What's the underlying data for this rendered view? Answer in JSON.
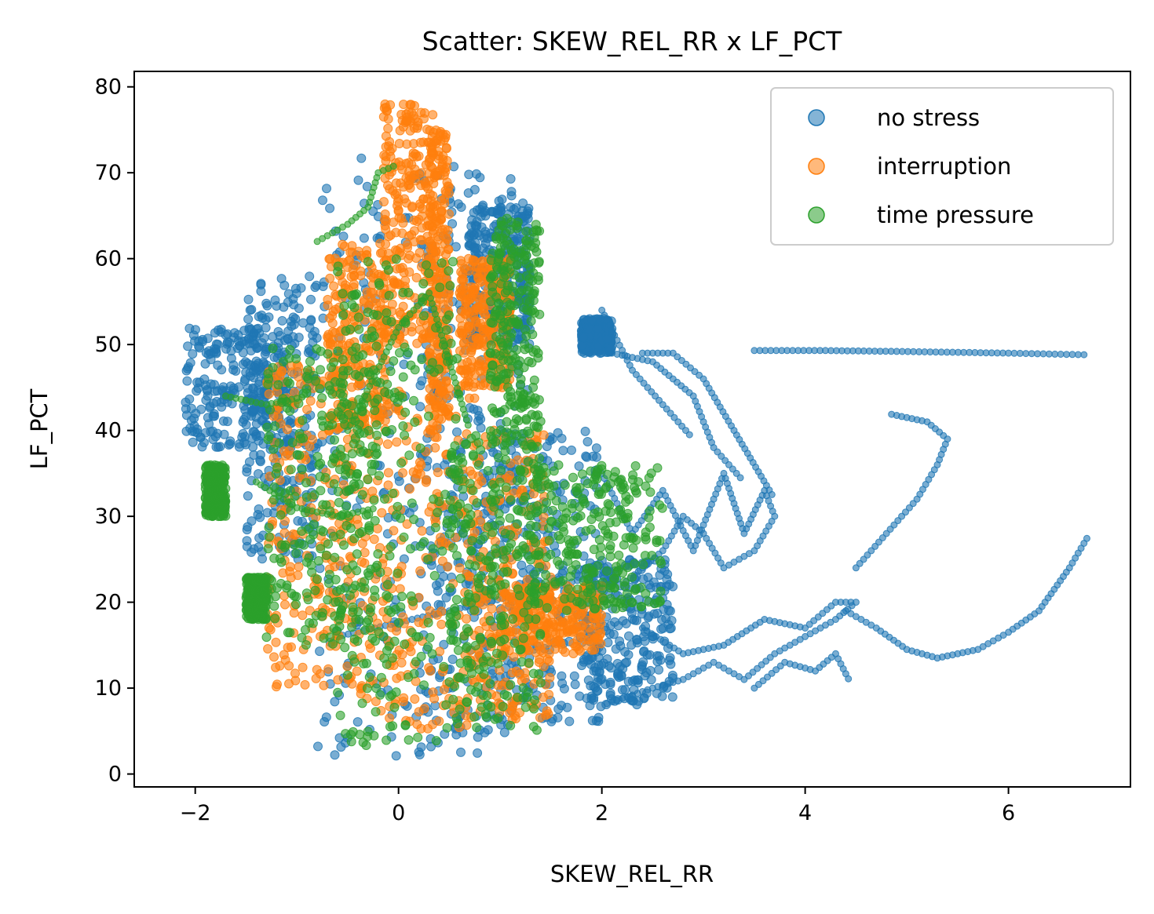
{
  "chart_data": {
    "type": "scatter",
    "title": "Scatter: SKEW_REL_RR x LF_PCT",
    "xlabel": "SKEW_REL_RR",
    "ylabel": "LF_PCT",
    "xlim": [
      -2.6,
      7.2
    ],
    "ylim": [
      -1.5,
      81.8
    ],
    "xticks": [
      -2,
      0,
      2,
      4,
      6
    ],
    "yticks": [
      0,
      10,
      20,
      30,
      40,
      50,
      60,
      70,
      80
    ],
    "grid": false,
    "legend_position": "top-right",
    "series": [
      {
        "name": "no stress",
        "color": "#1f77b4",
        "clusters": [
          {
            "x": [
              -2.1,
              -1.1
            ],
            "y": [
              38,
              52
            ]
          },
          {
            "x": [
              -1.5,
              -0.8
            ],
            "y": [
              25,
              58
            ]
          },
          {
            "x": [
              -0.8,
              0.8
            ],
            "y": [
              2,
              72
            ]
          },
          {
            "x": [
              0.2,
              1.3
            ],
            "y": [
              4,
              70
            ]
          },
          {
            "x": [
              0.7,
              1.3
            ],
            "y": [
              50,
              66
            ]
          },
          {
            "x": [
              0.8,
              2.0
            ],
            "y": [
              6,
              40
            ]
          },
          {
            "x": [
              1.8,
              2.7
            ],
            "y": [
              8,
              25
            ]
          },
          {
            "x": [
              1.8,
              2.1
            ],
            "y": [
              49,
              53
            ]
          }
        ],
        "paths": [
          [
            [
              2.0,
              35
            ],
            [
              2.3,
              28
            ],
            [
              2.6,
              33
            ],
            [
              2.9,
              26
            ],
            [
              3.2,
              35
            ],
            [
              3.4,
              28
            ],
            [
              3.6,
              33
            ],
            [
              3.7,
              30
            ],
            [
              3.5,
              26
            ],
            [
              3.2,
              24
            ],
            [
              3.0,
              28
            ],
            [
              2.8,
              30
            ],
            [
              2.6,
              26
            ],
            [
              2.2,
              22
            ]
          ],
          [
            [
              2.4,
              17
            ],
            [
              2.8,
              14
            ],
            [
              3.2,
              15
            ],
            [
              3.6,
              18
            ],
            [
              4.0,
              17
            ],
            [
              4.3,
              20
            ],
            [
              4.5,
              20
            ],
            [
              4.3,
              18
            ],
            [
              4.0,
              16
            ],
            [
              3.7,
              14
            ],
            [
              3.4,
              11
            ],
            [
              3.1,
              13
            ],
            [
              2.8,
              11
            ],
            [
              2.5,
              10
            ],
            [
              2.0,
              8
            ]
          ],
          [
            [
              3.5,
              10
            ],
            [
              3.8,
              13
            ],
            [
              4.1,
              12
            ],
            [
              4.3,
              14
            ],
            [
              4.45,
              10.5
            ]
          ],
          [
            [
              4.4,
              19
            ],
            [
              4.7,
              17
            ],
            [
              5.0,
              14.5
            ],
            [
              5.3,
              13.5
            ],
            [
              5.7,
              14.5
            ],
            [
              6.0,
              16.5
            ],
            [
              6.3,
              19
            ],
            [
              6.6,
              24
            ],
            [
              6.8,
              28
            ]
          ],
          [
            [
              4.5,
              24
            ],
            [
              4.8,
              28
            ],
            [
              5.1,
              32
            ],
            [
              5.3,
              36
            ],
            [
              5.4,
              39
            ],
            [
              5.2,
              41
            ],
            [
              4.8,
              42
            ]
          ],
          [
            [
              2.1,
              49
            ],
            [
              2.5,
              48
            ],
            [
              2.9,
              44
            ],
            [
              3.1,
              38
            ],
            [
              3.4,
              34
            ]
          ],
          [
            [
              2.4,
              49
            ],
            [
              2.7,
              49
            ],
            [
              3.0,
              46
            ],
            [
              3.3,
              40
            ],
            [
              3.7,
              32
            ]
          ],
          [
            [
              2.0,
              54
            ],
            [
              2.3,
              47
            ],
            [
              2.6,
              43
            ],
            [
              2.9,
              39
            ]
          ],
          [
            [
              3.5,
              49.3
            ],
            [
              4.2,
              49.3
            ],
            [
              4.9,
              49.2
            ],
            [
              6.0,
              49
            ],
            [
              6.4,
              48.9
            ],
            [
              6.8,
              48.8
            ]
          ],
          [
            [
              -0.6,
              16
            ],
            [
              0.5,
              19
            ],
            [
              1.6,
              22
            ],
            [
              2.5,
              25
            ]
          ]
        ]
      },
      {
        "name": "interruption",
        "color": "#ff7f0e",
        "clusters": [
          {
            "x": [
              -0.7,
              -0.1
            ],
            "y": [
              40,
              62
            ]
          },
          {
            "x": [
              -0.15,
              0.35
            ],
            "y": [
              50,
              78
            ]
          },
          {
            "x": [
              0.3,
              0.5
            ],
            "y": [
              40,
              75
            ]
          },
          {
            "x": [
              -1.3,
              -0.4
            ],
            "y": [
              10,
              48
            ]
          },
          {
            "x": [
              -0.4,
              0.8
            ],
            "y": [
              5,
              45
            ]
          },
          {
            "x": [
              0.7,
              1.5
            ],
            "y": [
              6,
              40
            ]
          },
          {
            "x": [
              1.0,
              2.0
            ],
            "y": [
              14,
              22
            ]
          },
          {
            "x": [
              0.6,
              1.1
            ],
            "y": [
              45,
              60
            ]
          }
        ],
        "paths": []
      },
      {
        "name": "time pressure",
        "color": "#2ca02c",
        "clusters": [
          {
            "x": [
              -0.6,
              0.6
            ],
            "y": [
              3,
              60
            ]
          },
          {
            "x": [
              -1.3,
              -0.2
            ],
            "y": [
              15,
              50
            ]
          },
          {
            "x": [
              0.5,
              1.4
            ],
            "y": [
              5,
              40
            ]
          },
          {
            "x": [
              -1.9,
              -1.7
            ],
            "y": [
              30,
              36
            ]
          },
          {
            "x": [
              -1.5,
              -1.3
            ],
            "y": [
              18,
              23
            ]
          },
          {
            "x": [
              0.9,
              1.4
            ],
            "y": [
              38,
              65
            ]
          },
          {
            "x": [
              1.3,
              2.6
            ],
            "y": [
              19,
              36
            ]
          }
        ],
        "paths": [
          [
            [
              -0.8,
              62
            ],
            [
              -0.5,
              64
            ],
            [
              -0.3,
              66
            ],
            [
              -0.2,
              70
            ],
            [
              0.0,
              71
            ]
          ],
          [
            [
              -0.5,
              40
            ],
            [
              0.0,
              52
            ],
            [
              0.3,
              56
            ],
            [
              0.7,
              40
            ]
          ],
          [
            [
              -1.7,
              44
            ],
            [
              -1.3,
              43
            ],
            [
              -0.9,
              44
            ]
          ],
          [
            [
              -1.4,
              34
            ],
            [
              -1.0,
              31
            ],
            [
              -0.6,
              30
            ],
            [
              -0.2,
              31
            ]
          ]
        ]
      }
    ]
  }
}
